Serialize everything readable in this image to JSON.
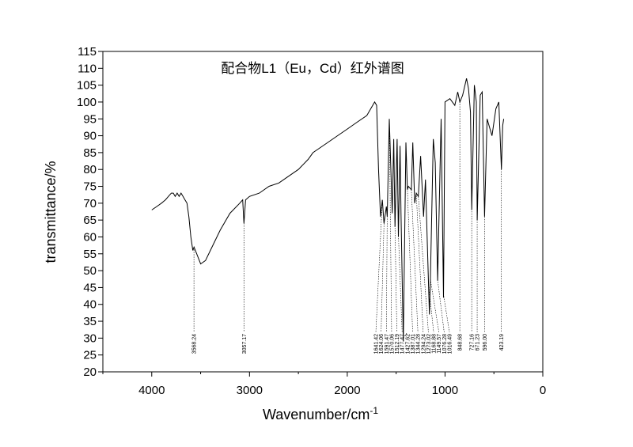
{
  "chart_data": {
    "type": "line",
    "title": "配合物L1（Eu，Cd）红外谱图",
    "xlabel": "Wavenumber/cm",
    "xlabel_sup": "-1",
    "ylabel": "transmittance/%",
    "xlim": [
      4500,
      0
    ],
    "ylim": [
      20,
      115
    ],
    "x_reversed": true,
    "grid": false,
    "x_ticks": [
      4000,
      3000,
      2000,
      1000,
      0
    ],
    "x_tick_labels": [
      "4000",
      "3000",
      "2000",
      "1000",
      "0"
    ],
    "y_ticks": [
      20,
      25,
      30,
      35,
      40,
      45,
      50,
      55,
      60,
      65,
      70,
      75,
      80,
      85,
      90,
      95,
      100,
      105,
      110,
      115
    ],
    "y_tick_labels": [
      "20",
      "25",
      "30",
      "35",
      "40",
      "45",
      "50",
      "55",
      "60",
      "65",
      "70",
      "75",
      "80",
      "85",
      "90",
      "95",
      "100",
      "105",
      "110",
      "115"
    ],
    "series": [
      {
        "color": "#000000",
        "x": [
          4000,
          3950,
          3900,
          3860,
          3830,
          3800,
          3780,
          3760,
          3740,
          3720,
          3700,
          3680,
          3660,
          3640,
          3620,
          3600,
          3580,
          3568,
          3540,
          3500,
          3450,
          3400,
          3300,
          3200,
          3100,
          3070,
          3057,
          3040,
          3000,
          2900,
          2800,
          2700,
          2600,
          2500,
          2400,
          2350,
          2300,
          2200,
          2100,
          2000,
          1900,
          1800,
          1720,
          1700,
          1680,
          1660,
          1641,
          1624,
          1600,
          1591,
          1570,
          1540,
          1525,
          1512,
          1490,
          1477,
          1460,
          1450,
          1427,
          1400,
          1385,
          1375,
          1344,
          1330,
          1310,
          1294,
          1273,
          1250,
          1220,
          1200,
          1160,
          1149,
          1120,
          1100,
          1076,
          1050,
          1040,
          1016,
          1000,
          950,
          900,
          870,
          848,
          820,
          780,
          760,
          740,
          727,
          700,
          680,
          671,
          640,
          620,
          596,
          570,
          520,
          480,
          450,
          423,
          410,
          400
        ],
        "y": [
          68,
          69,
          70,
          71,
          72,
          73,
          73,
          72,
          73,
          72,
          73,
          72,
          71,
          70,
          66,
          60,
          56,
          57,
          55,
          52,
          53,
          56,
          62,
          67,
          70,
          71,
          64,
          71,
          72,
          73,
          75,
          76,
          78,
          80,
          83,
          85,
          86,
          88,
          90,
          92,
          94,
          96,
          100,
          99,
          80,
          66,
          71,
          64,
          69,
          66,
          95,
          67,
          89,
          63,
          89,
          60,
          87,
          67,
          29,
          88,
          74,
          75,
          74,
          88,
          70,
          73,
          72,
          84,
          66,
          77,
          37,
          48,
          89,
          82,
          47,
          82,
          95,
          42,
          100,
          101,
          99,
          103,
          100,
          102,
          107,
          104,
          97,
          68,
          105,
          100,
          65,
          102,
          103,
          66,
          95,
          90,
          98,
          100,
          80,
          93,
          95
        ]
      }
    ],
    "annotations": [
      {
        "x": 3568.24,
        "text": "3568.24"
      },
      {
        "x": 3057.17,
        "text": "3057.17"
      },
      {
        "x": 1641.42,
        "text": "1641.42"
      },
      {
        "x": 1624.06,
        "text": "1624.06"
      },
      {
        "x": 1591.47,
        "text": "1591.47"
      },
      {
        "x": 1570.06,
        "text": "1570.06"
      },
      {
        "x": 1512.19,
        "text": "1512.19"
      },
      {
        "x": 1477.47,
        "text": "1477.47"
      },
      {
        "x": 1427.62,
        "text": "1427.62"
      },
      {
        "x": 1387.01,
        "text": "1387.01"
      },
      {
        "x": 1344.28,
        "text": "1344.28"
      },
      {
        "x": 1294.24,
        "text": "1294.24"
      },
      {
        "x": 1273.02,
        "text": "1273.02"
      },
      {
        "x": 1168.88,
        "text": "1168.88"
      },
      {
        "x": 1149.57,
        "text": "1149.57"
      },
      {
        "x": 1076.28,
        "text": "1076.28"
      },
      {
        "x": 1016.49,
        "text": "1016.49"
      },
      {
        "x": 848.68,
        "text": "848.68"
      },
      {
        "x": 727.16,
        "text": "727.16"
      },
      {
        "x": 671.23,
        "text": "671.23"
      },
      {
        "x": 596.0,
        "text": "596.00"
      },
      {
        "x": 423.19,
        "text": "423.19"
      }
    ]
  }
}
